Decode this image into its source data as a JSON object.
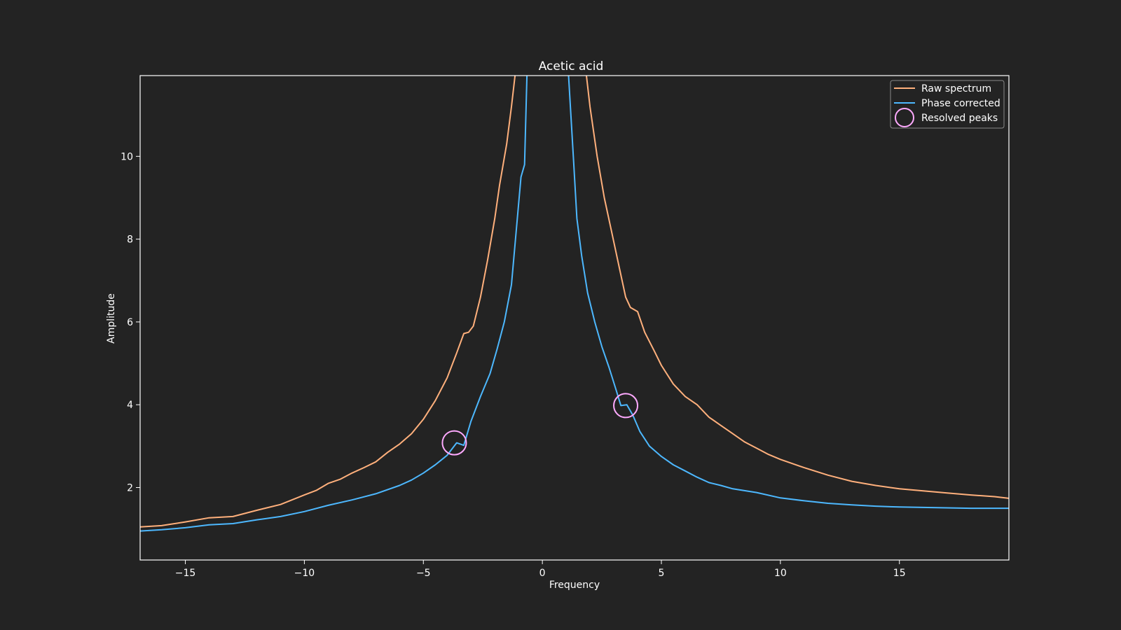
{
  "chart_data": {
    "type": "line",
    "title": "Acetic acid",
    "xlabel": "Frequency",
    "ylabel": "Amplitude",
    "xlim": [
      -16.9,
      19.6
    ],
    "ylim": [
      0.25,
      11.95
    ],
    "xticks": [
      -15,
      -10,
      -5,
      0,
      5,
      10,
      15
    ],
    "xtick_labels": [
      "−15",
      "−10",
      "−5",
      "0",
      "5",
      "10",
      "15"
    ],
    "yticks": [
      2,
      4,
      6,
      8,
      10
    ],
    "ytick_labels": [
      "2",
      "4",
      "6",
      "8",
      "10"
    ],
    "grid": false,
    "legend_position": "top-right",
    "series": [
      {
        "name": "Raw spectrum",
        "color": "#ffb07c",
        "points": [
          [
            -16.9,
            1.05
          ],
          [
            -16.0,
            1.08
          ],
          [
            -15.0,
            1.17
          ],
          [
            -14.0,
            1.27
          ],
          [
            -13.0,
            1.3
          ],
          [
            -12.0,
            1.45
          ],
          [
            -11.0,
            1.59
          ],
          [
            -10.0,
            1.82
          ],
          [
            -9.5,
            1.93
          ],
          [
            -9.0,
            2.1
          ],
          [
            -8.5,
            2.2
          ],
          [
            -8.0,
            2.35
          ],
          [
            -7.5,
            2.48
          ],
          [
            -7.0,
            2.62
          ],
          [
            -6.5,
            2.85
          ],
          [
            -6.0,
            3.05
          ],
          [
            -5.5,
            3.3
          ],
          [
            -5.0,
            3.65
          ],
          [
            -4.5,
            4.1
          ],
          [
            -4.0,
            4.65
          ],
          [
            -3.6,
            5.25
          ],
          [
            -3.3,
            5.72
          ],
          [
            -3.1,
            5.75
          ],
          [
            -2.9,
            5.9
          ],
          [
            -2.6,
            6.6
          ],
          [
            -2.3,
            7.5
          ],
          [
            -2.0,
            8.5
          ],
          [
            -1.8,
            9.3
          ],
          [
            -1.5,
            10.3
          ],
          [
            -1.3,
            11.2
          ],
          [
            -1.15,
            11.95
          ]
        ]
      },
      {
        "name": "Raw spectrum right branch",
        "color": "#ffb07c",
        "points": [
          [
            1.85,
            11.95
          ],
          [
            2.0,
            11.2
          ],
          [
            2.3,
            10.0
          ],
          [
            2.6,
            9.0
          ],
          [
            2.9,
            8.2
          ],
          [
            3.2,
            7.4
          ],
          [
            3.5,
            6.6
          ],
          [
            3.7,
            6.35
          ],
          [
            4.0,
            6.25
          ],
          [
            4.3,
            5.75
          ],
          [
            4.7,
            5.3
          ],
          [
            5.0,
            4.95
          ],
          [
            5.5,
            4.5
          ],
          [
            6.0,
            4.2
          ],
          [
            6.5,
            4.0
          ],
          [
            7.0,
            3.7
          ],
          [
            7.5,
            3.5
          ],
          [
            8.0,
            3.3
          ],
          [
            8.5,
            3.1
          ],
          [
            9.0,
            2.95
          ],
          [
            9.5,
            2.8
          ],
          [
            10.0,
            2.68
          ],
          [
            11.0,
            2.48
          ],
          [
            12.0,
            2.3
          ],
          [
            13.0,
            2.15
          ],
          [
            14.0,
            2.05
          ],
          [
            15.0,
            1.97
          ],
          [
            16.0,
            1.92
          ],
          [
            17.0,
            1.87
          ],
          [
            18.0,
            1.82
          ],
          [
            19.0,
            1.78
          ],
          [
            19.6,
            1.74
          ]
        ]
      },
      {
        "name": "Phase corrected",
        "color": "#4db8ff",
        "points": [
          [
            -16.9,
            0.95
          ],
          [
            -16.0,
            0.98
          ],
          [
            -15.0,
            1.03
          ],
          [
            -14.0,
            1.1
          ],
          [
            -13.0,
            1.13
          ],
          [
            -12.0,
            1.22
          ],
          [
            -11.0,
            1.3
          ],
          [
            -10.0,
            1.42
          ],
          [
            -9.0,
            1.57
          ],
          [
            -8.0,
            1.7
          ],
          [
            -7.0,
            1.85
          ],
          [
            -6.0,
            2.05
          ],
          [
            -5.5,
            2.18
          ],
          [
            -5.0,
            2.35
          ],
          [
            -4.5,
            2.55
          ],
          [
            -4.0,
            2.78
          ],
          [
            -3.6,
            3.08
          ],
          [
            -3.3,
            3.02
          ],
          [
            -3.0,
            3.6
          ],
          [
            -2.6,
            4.2
          ],
          [
            -2.2,
            4.75
          ],
          [
            -1.9,
            5.35
          ],
          [
            -1.6,
            6.0
          ],
          [
            -1.3,
            6.9
          ],
          [
            -1.1,
            8.2
          ],
          [
            -0.9,
            9.5
          ],
          [
            -0.75,
            9.8
          ],
          [
            -0.65,
            11.95
          ]
        ]
      },
      {
        "name": "Phase corrected right branch",
        "color": "#4db8ff",
        "points": [
          [
            1.1,
            11.95
          ],
          [
            1.3,
            10.0
          ],
          [
            1.45,
            8.5
          ],
          [
            1.65,
            7.6
          ],
          [
            1.9,
            6.7
          ],
          [
            2.2,
            6.0
          ],
          [
            2.5,
            5.4
          ],
          [
            2.8,
            4.9
          ],
          [
            3.1,
            4.35
          ],
          [
            3.3,
            3.98
          ],
          [
            3.55,
            4.0
          ],
          [
            3.8,
            3.75
          ],
          [
            4.1,
            3.35
          ],
          [
            4.5,
            3.0
          ],
          [
            5.0,
            2.75
          ],
          [
            5.5,
            2.55
          ],
          [
            6.0,
            2.4
          ],
          [
            6.5,
            2.25
          ],
          [
            7.0,
            2.12
          ],
          [
            7.5,
            2.05
          ],
          [
            8.0,
            1.97
          ],
          [
            9.0,
            1.88
          ],
          [
            10.0,
            1.75
          ],
          [
            11.0,
            1.68
          ],
          [
            12.0,
            1.62
          ],
          [
            13.0,
            1.58
          ],
          [
            14.0,
            1.55
          ],
          [
            15.0,
            1.53
          ],
          [
            16.0,
            1.52
          ],
          [
            17.0,
            1.51
          ],
          [
            18.0,
            1.5
          ],
          [
            19.0,
            1.5
          ],
          [
            19.6,
            1.5
          ]
        ]
      }
    ],
    "markers": {
      "name": "Resolved peaks",
      "color": "#ffaaff",
      "points": [
        [
          -3.7,
          3.08
        ],
        [
          3.5,
          3.98
        ]
      ]
    },
    "legend": [
      {
        "label": "Raw spectrum",
        "color": "#ffb07c",
        "kind": "line"
      },
      {
        "label": "Phase corrected",
        "color": "#4db8ff",
        "kind": "line"
      },
      {
        "label": "Resolved peaks",
        "color": "#ffaaff",
        "kind": "circle"
      }
    ]
  }
}
